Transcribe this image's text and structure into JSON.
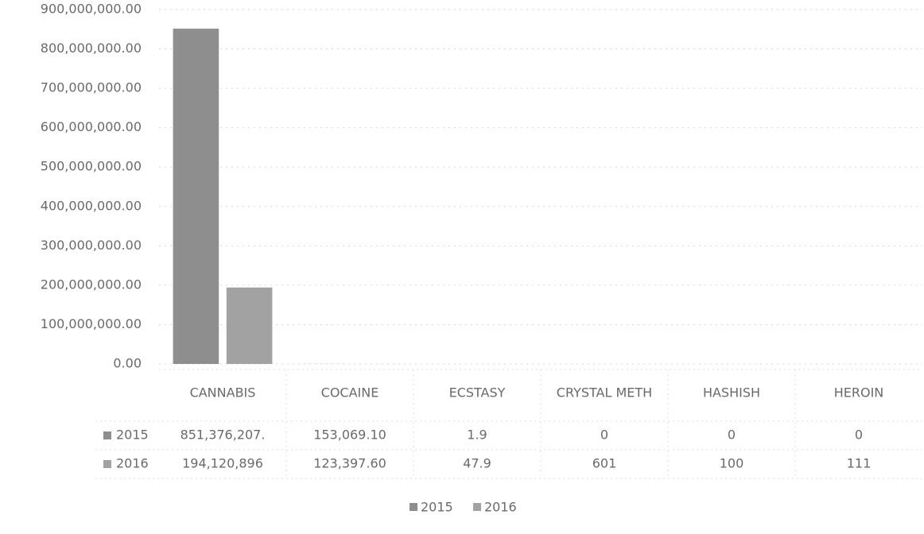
{
  "chart_data": {
    "type": "bar",
    "categories": [
      "CANNABIS",
      "COCAINE",
      "ECSTASY",
      "CRYSTAL METH",
      "HASHISH",
      "HEROIN"
    ],
    "series": [
      {
        "name": "2015",
        "color": "#8e8e8e",
        "values": [
          851376207,
          153069.1,
          1.9,
          0,
          0,
          0
        ],
        "value_labels": [
          "851,376,207.",
          "153,069.10",
          "1.9",
          "0",
          "0",
          "0"
        ]
      },
      {
        "name": "2016",
        "color": "#a2a2a2",
        "values": [
          194120896,
          123397.6,
          47.9,
          601,
          100,
          111
        ],
        "value_labels": [
          "194,120,896",
          "123,397.60",
          "47.9",
          "601",
          "100",
          "111"
        ]
      }
    ],
    "ylim": [
      0,
      900000000
    ],
    "yticks": [
      {
        "value": 0,
        "label": "0.00"
      },
      {
        "value": 100000000,
        "label": "100,000,000.00"
      },
      {
        "value": 200000000,
        "label": "200,000,000.00"
      },
      {
        "value": 300000000,
        "label": "300,000,000.00"
      },
      {
        "value": 400000000,
        "label": "400,000,000.00"
      },
      {
        "value": 500000000,
        "label": "500,000,000.00"
      },
      {
        "value": 600000000,
        "label": "600,000,000.00"
      },
      {
        "value": 700000000,
        "label": "700,000,000.00"
      },
      {
        "value": 800000000,
        "label": "800,000,000.00"
      },
      {
        "value": 900000000,
        "label": "900,000,000.00"
      }
    ],
    "grid": true
  }
}
